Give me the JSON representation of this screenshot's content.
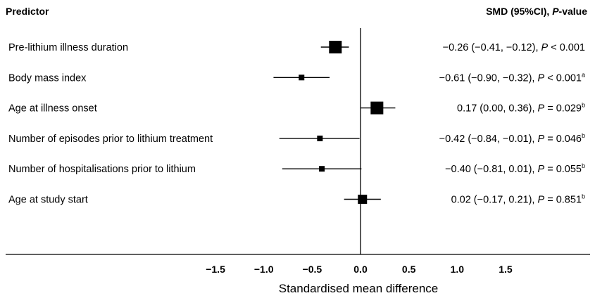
{
  "chart_data": {
    "type": "forest",
    "header_left": "Predictor",
    "header_right": {
      "prefix": "SMD (95%CI), ",
      "italic": "P",
      "suffix": "-value"
    },
    "xlabel": "Standardised mean difference",
    "xlim": [
      -1.5,
      1.5
    ],
    "xticks": [
      "−1.5",
      "−1.0",
      "−0.5",
      "0.0",
      "0.5",
      "1.0",
      "1.5"
    ],
    "xtick_values": [
      -1.5,
      -1.0,
      -0.5,
      0.0,
      0.5,
      1.0,
      1.5
    ],
    "reference_line": 0,
    "rows": [
      {
        "predictor": "Pre-lithium illness duration",
        "smd": -0.26,
        "ci_low": -0.41,
        "ci_high": -0.12,
        "marker_weight": "large",
        "result": {
          "estimate": "−0.26 (−0.41, −0.12), ",
          "p": "P",
          "rel": " < 0.001",
          "sup": ""
        }
      },
      {
        "predictor": "Body mass index",
        "smd": -0.61,
        "ci_low": -0.9,
        "ci_high": -0.32,
        "marker_weight": "small",
        "result": {
          "estimate": "−0.61 (−0.90, −0.32), ",
          "p": "P",
          "rel": " < 0.001",
          "sup": "a"
        }
      },
      {
        "predictor": "Age at illness onset",
        "smd": 0.17,
        "ci_low": 0.0,
        "ci_high": 0.36,
        "marker_weight": "large",
        "result": {
          "estimate": "0.17 (0.00, 0.36), ",
          "p": "P",
          "rel": " = 0.029",
          "sup": "b"
        }
      },
      {
        "predictor": "Number of episodes prior to lithium treatment",
        "smd": -0.42,
        "ci_low": -0.84,
        "ci_high": -0.01,
        "marker_weight": "small",
        "result": {
          "estimate": "−0.42 (−0.84, −0.01), ",
          "p": "P",
          "rel": " = 0.046",
          "sup": "b"
        }
      },
      {
        "predictor": "Number of hospitalisations prior to lithium",
        "smd": -0.4,
        "ci_low": -0.81,
        "ci_high": 0.01,
        "marker_weight": "small",
        "result": {
          "estimate": "−0.40 (−0.81, 0.01), ",
          "p": "P",
          "rel": " = 0.055",
          "sup": "b"
        }
      },
      {
        "predictor": "Age at study start",
        "smd": 0.02,
        "ci_low": -0.17,
        "ci_high": 0.21,
        "marker_weight": "medium",
        "result": {
          "estimate": "0.02 (−0.17, 0.21), ",
          "p": "P",
          "rel": " = 0.851",
          "sup": "b"
        }
      }
    ]
  }
}
